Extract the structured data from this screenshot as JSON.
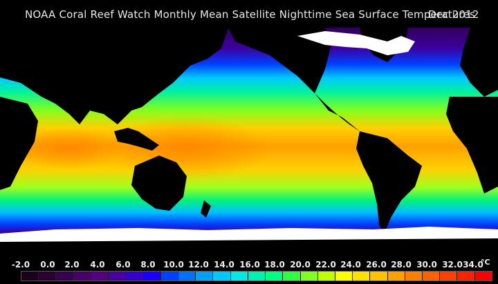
{
  "title": {
    "main": "NOAA Coral Reef Watch Monthly Mean Satellite Nighttime Sea Surface Temperatures",
    "date": "Dec 2012"
  },
  "colorbar": {
    "unit": "°C",
    "labels": [
      "-2.0",
      "0.0",
      "2.0",
      "4.0",
      "6.0",
      "8.0",
      "10.0",
      "12.0",
      "14.0",
      "16.0",
      "18.0",
      "20.0",
      "22.0",
      "24.0",
      "26.0",
      "28.0",
      "30.0",
      "32.0",
      "34.0"
    ],
    "swatch_colors": [
      "#1a001a",
      "#2a0033",
      "#3a0050",
      "#460066",
      "#500080",
      "#4a00a0",
      "#3300cc",
      "#1a00ff",
      "#0040ff",
      "#0070ff",
      "#00a0ff",
      "#00c8ff",
      "#00e8e0",
      "#00f0b0",
      "#00ff80",
      "#30ff40",
      "#80ff20",
      "#c0ff00",
      "#ffff00",
      "#ffe000",
      "#ffc000",
      "#ffa000",
      "#ff8000",
      "#ff6000",
      "#ff4000",
      "#ff2000",
      "#ff0000"
    ]
  },
  "colors": {
    "ocean_cold": "#3a0080",
    "ocean_cool": "#0050ff",
    "ocean_mild": "#00e0c0",
    "ocean_warm": "#a0ff20",
    "ocean_hot": "#ff9a00",
    "land": "#000000",
    "ice": "#ffffff"
  }
}
